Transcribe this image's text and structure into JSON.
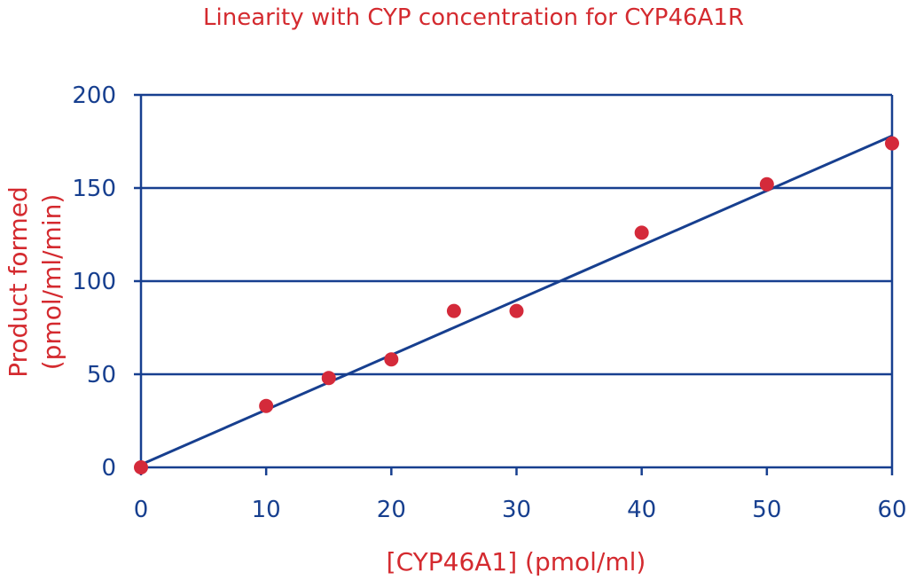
{
  "chart_data": {
    "type": "scatter",
    "title": "Linearity with CYP concentration for CYP46A1R",
    "xlabel": "[CYP46A1] (pmol/ml)",
    "ylabel_line1": "Product formed",
    "ylabel_line2": "(pmol/ml/min)",
    "xlim": [
      0,
      60
    ],
    "ylim": [
      0,
      200
    ],
    "xticks": [
      0,
      10,
      20,
      30,
      40,
      50,
      60
    ],
    "yticks": [
      0,
      50,
      100,
      150,
      200
    ],
    "grid": "horizontal",
    "series": [
      {
        "kind": "points",
        "x": [
          0,
          10,
          15,
          20,
          25,
          30,
          40,
          50,
          60
        ],
        "y": [
          0,
          33,
          48,
          58,
          84,
          84,
          126,
          152,
          174
        ]
      },
      {
        "kind": "fit-line",
        "x": [
          0,
          60
        ],
        "y": [
          1.5,
          178
        ]
      }
    ],
    "colors": {
      "points": "#d42a3a",
      "line": "#173f8f",
      "grid": "#173f8f",
      "axis_text": "#173f8f",
      "label_text": "#d42a2f"
    }
  }
}
